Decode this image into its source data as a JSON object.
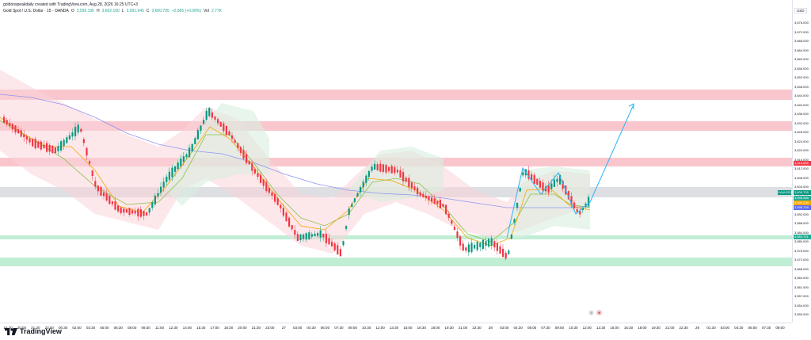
{
  "header": {
    "author": "goldonspeakdaily created with TradingView.com, Aug 28, 2026 16:25 UTC+3",
    "symbol": "Gold Spot / U.S. Dollar · 15 · OANDA",
    "ohlc": {
      "open_label": "O",
      "open": "3,599.195",
      "high_label": "H",
      "high": "3,602.100",
      "low_label": "L",
      "low": "3,591.645",
      "close_label": "C",
      "close": "3,600.705",
      "change": "+2.865 (+0.08%)",
      "vol_label": "Vol",
      "vol": "2.77K"
    }
  },
  "currency": "USD",
  "price_axis": {
    "ticks": [
      "3,676.000",
      "3,672.000",
      "3,668.000",
      "3,664.000",
      "3,660.000",
      "3,656.000",
      "3,652.000",
      "3,648.000",
      "3,644.000",
      "3,640.000",
      "3,636.000",
      "3,632.000",
      "3,628.000",
      "3,624.000",
      "3,620.000",
      "3,616.000",
      "3,612.000",
      "3,608.000",
      "3,604.000",
      "3,600.000",
      "3,596.000",
      "3,592.000",
      "3,588.000",
      "3,584.000",
      "3,580.000",
      "3,576.000",
      "3,572.000",
      "3,568.000",
      "3,564.000",
      "3,561.000",
      "3,557.000",
      "3,554.000",
      "3,550.000"
    ],
    "tags": [
      {
        "text": "3,618.655",
        "color": "#f23645"
      },
      {
        "text": "3,600.705",
        "color": "#089981"
      },
      {
        "text": "3,598.365",
        "color": "#22ab94"
      },
      {
        "text": "3,599.235",
        "color": "#f7a600"
      },
      {
        "text": "3,596.709",
        "color": "#5b6bf0"
      },
      {
        "text": "3,583.701",
        "color": "#22ab94"
      }
    ],
    "left_tag": {
      "text": "XAUUSD",
      "color": "#089981"
    }
  },
  "time_axis": {
    "ticks": [
      "18:30",
      "20:00",
      "21:30",
      "23:00",
      "00:30",
      "02:00",
      "03:30",
      "05:00",
      "06:30",
      "08:00",
      "09:30",
      "11:00",
      "12:30",
      "14:00",
      "15:30",
      "17:00",
      "18:30",
      "20:00",
      "21:30",
      "23:00",
      "27",
      "03:00",
      "04:30",
      "06:00",
      "07:30",
      "09:00",
      "10:30",
      "12:00",
      "13:30",
      "15:00",
      "16:30",
      "18:00",
      "19:30",
      "21:00",
      "22:30",
      "28",
      "03:00",
      "04:30",
      "06:00",
      "07:30",
      "09:00",
      "10:30",
      "12:00",
      "13:30",
      "15:00",
      "16:30",
      "18:00",
      "19:30",
      "21:00",
      "22:30",
      "29",
      "01:30",
      "03:00",
      "04:30",
      "06:00",
      "07:30",
      "09:00"
    ]
  },
  "colors": {
    "bull": "#089981",
    "bear": "#f23645",
    "resistance_zone": "#f8bcc4",
    "support_zone": "#b9ecd0",
    "pivot_zone": "#d9dbe0",
    "envelope_upper": "#f9d4d8",
    "envelope_lower": "#d8efdf",
    "ma_fast": "#f7a600",
    "ma_mid": "#8bc34a",
    "ma_slow": "#8e97f0",
    "projection": "#29b6f6"
  },
  "logo_text": "TradingView"
}
